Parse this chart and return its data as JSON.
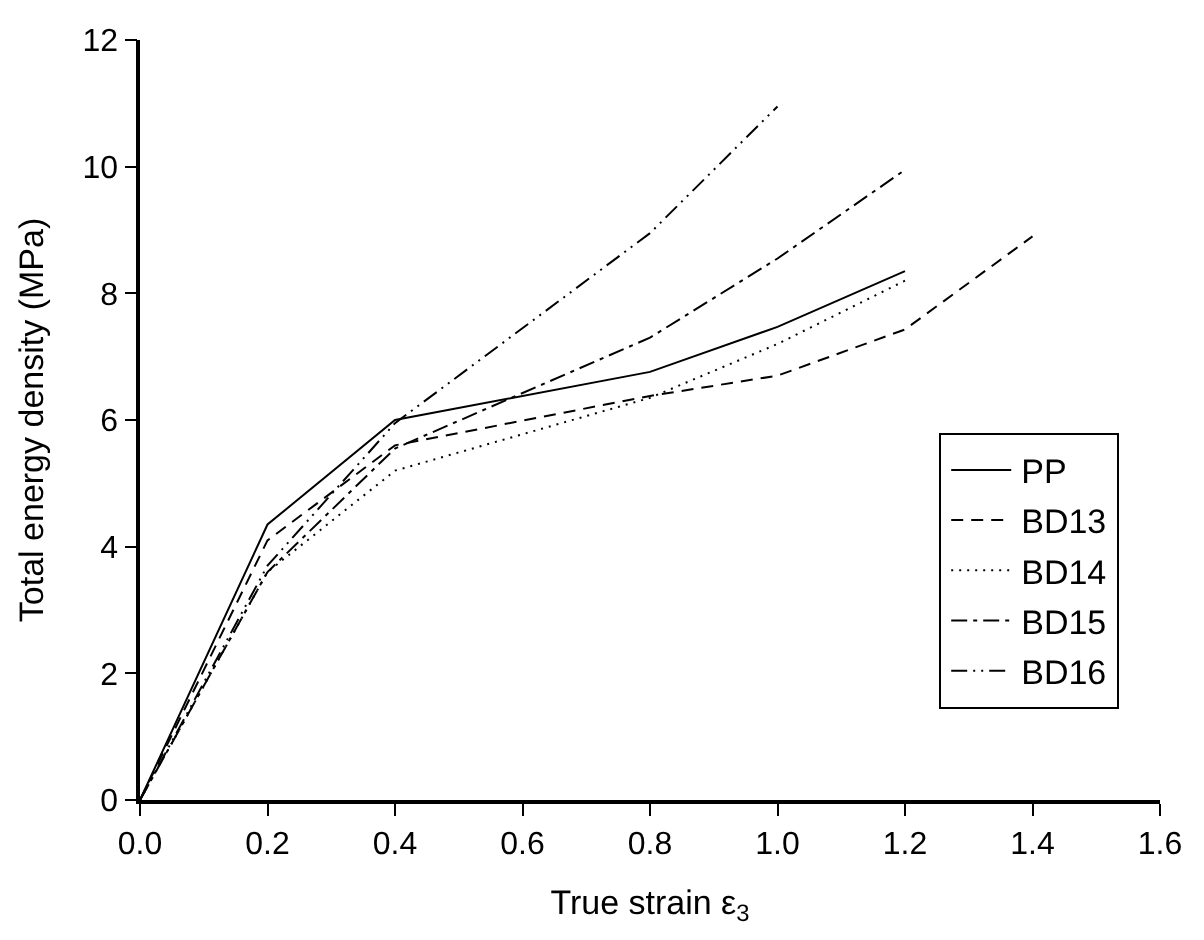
{
  "chart_data": {
    "type": "line",
    "xlabel": "True strain ε$_{3}$",
    "ylabel": "Total energy density (MPa)",
    "xlim": [
      0,
      1.6
    ],
    "ylim": [
      0,
      12
    ],
    "xticks": [
      {
        "value": 0,
        "label": "0.0"
      },
      {
        "value": 0.2,
        "label": "0.2"
      },
      {
        "value": 0.4,
        "label": "0.4"
      },
      {
        "value": 0.6,
        "label": "0.6"
      },
      {
        "value": 0.8,
        "label": "0.8"
      },
      {
        "value": 1,
        "label": "1.0"
      },
      {
        "value": 1.2,
        "label": "1.2"
      },
      {
        "value": 1.4,
        "label": "1.4"
      },
      {
        "value": 1.6,
        "label": "1.6"
      }
    ],
    "yticks": [
      0,
      2,
      4,
      6,
      8,
      10,
      12
    ],
    "legend": "bottom right",
    "marker": "none",
    "series": [
      {
        "name": "PP",
        "color": "#000000",
        "line_style": "solid",
        "x": [
          0,
          0.2,
          0.4,
          0.8,
          1.0,
          1.2
        ],
        "values": [
          0,
          4.35,
          6.0,
          6.76,
          7.47,
          8.35
        ]
      },
      {
        "name": "BD13",
        "color": "#000000",
        "line_style": "dashed",
        "x": [
          0,
          0.2,
          0.4,
          0.8,
          1.0,
          1.2,
          1.4
        ],
        "values": [
          0,
          4.1,
          5.6,
          6.38,
          6.7,
          7.43,
          8.9
        ]
      },
      {
        "name": "BD14",
        "color": "#000000",
        "line_style": "dotted",
        "x": [
          0,
          0.2,
          0.4,
          0.8,
          1.0,
          1.2
        ],
        "values": [
          0,
          3.6,
          5.2,
          6.35,
          7.2,
          8.2
        ]
      },
      {
        "name": "BD15",
        "color": "#000000",
        "line_style": "dashdot",
        "x": [
          0,
          0.2,
          0.4,
          0.8,
          1.0,
          1.2
        ],
        "values": [
          0,
          3.6,
          5.55,
          7.3,
          8.55,
          9.95
        ]
      },
      {
        "name": "BD16",
        "color": "#000000",
        "line_style": "dashdotdot",
        "x": [
          0,
          0.2,
          0.4,
          0.8,
          1.0
        ],
        "values": [
          0,
          3.7,
          5.95,
          8.95,
          10.95
        ]
      }
    ]
  }
}
